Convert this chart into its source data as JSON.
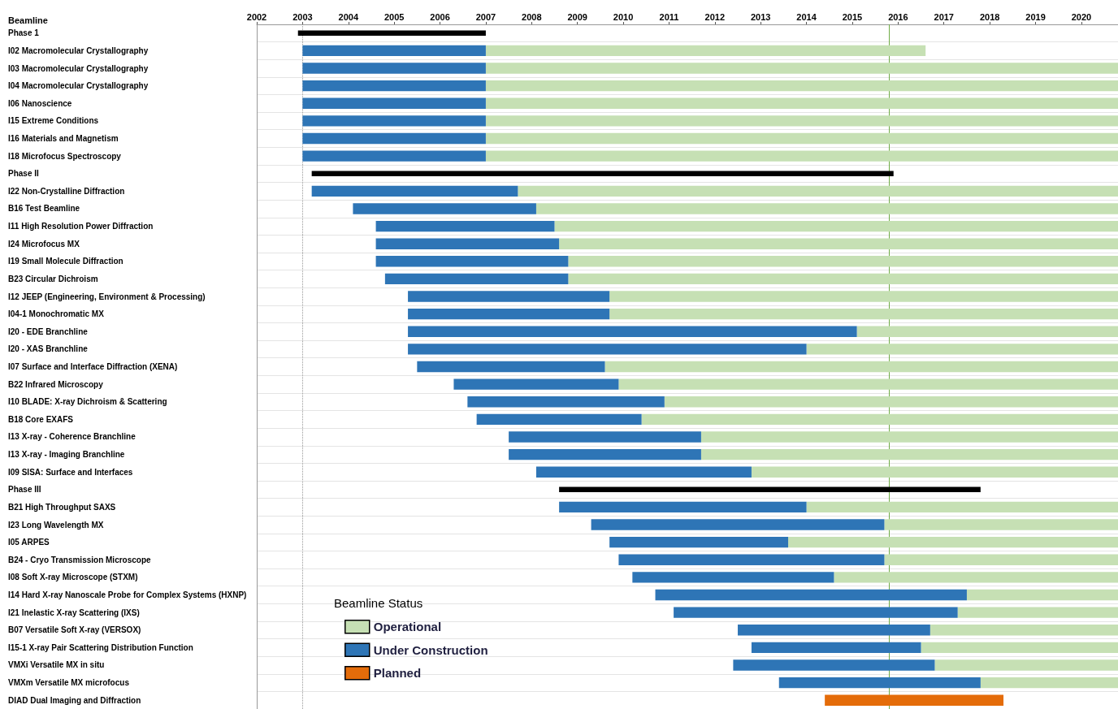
{
  "chart_data": {
    "type": "bar",
    "orientation": "horizontal",
    "ylabel": "Beamline",
    "legend_title": "Beamline Status",
    "legend": "bottom left",
    "categories": [
      "Phase 1",
      "I02 Macromolecular Crystallography",
      "I03 Macromolecular Crystallography",
      "I04 Macromolecular Crystallography",
      "I06 Nanoscience",
      "I15 Extreme Conditions",
      "I16 Materials and Magnetism",
      "I18 Microfocus Spectroscopy",
      "Phase II",
      "I22 Non-Crystalline Diffraction",
      "B16 Test Beamline",
      "I11 High Resolution Power Diffraction",
      "I24 Microfocus MX",
      "I19 Small Molecule Diffraction",
      "B23 Circular Dichroism",
      "I12 JEEP (Engineering, Environment & Processing)",
      "I04-1 Monochromatic MX",
      "I20 - EDE Branchline",
      "I20 - XAS Branchline",
      "I07 Surface and Interface Diffraction (XENA)",
      "B22 Infrared Microscopy",
      "I10 BLADE: X-ray Dichroism & Scattering",
      "B18 Core EXAFS",
      "I13 X-ray - Coherence Branchline",
      "I13 X-ray - Imaging Branchline",
      "I09 SISA: Surface and Interfaces",
      "Phase III",
      "B21 High Throughput SAXS",
      "I23 Long Wavelength MX",
      "I05 ARPES",
      "B24 - Cryo Transmission Microscope",
      "I08 Soft X-ray Microscope (STXM)",
      "I14 Hard X-ray Nanoscale Probe for Complex Systems (HXNP)",
      "I21 Inelastic X-ray Scattering (IXS)",
      "B07 Versatile Soft X-ray (VERSOX)",
      "I15-1 X-ray Pair Scattering Distribution Function",
      "VMXi Versatile MX in situ",
      "VMXm Versatile MX microfocus",
      "DIAD Dual Imaging and Diffraction"
    ],
    "series": [
      {
        "name": "Operational",
        "color": "#c6e0b4",
        "base": [
          null,
          2007.0,
          2007.0,
          2007.0,
          2007.0,
          2007.0,
          2007.0,
          2007.0,
          null,
          2007.7,
          2008.1,
          2008.5,
          2008.6,
          2008.8,
          2008.8,
          2009.7,
          2009.7,
          2015.1,
          2014.0,
          2009.6,
          2009.9,
          2010.9,
          2010.4,
          2011.7,
          2011.7,
          2012.8,
          null,
          2014.0,
          2015.7,
          2013.6,
          2015.7,
          2014.6,
          2017.5,
          2017.3,
          2016.7,
          2016.5,
          2016.8,
          2017.8,
          null
        ],
        "values": [
          null,
          9.6,
          13.8,
          13.8,
          13.8,
          13.8,
          13.8,
          13.8,
          null,
          13.1,
          12.7,
          12.3,
          12.2,
          12.0,
          12.0,
          11.1,
          11.1,
          5.7,
          6.8,
          11.2,
          10.9,
          9.9,
          10.4,
          9.1,
          9.1,
          8.0,
          null,
          6.8,
          5.1,
          7.2,
          5.1,
          6.2,
          3.3,
          3.5,
          4.1,
          4.3,
          4.0,
          3.0,
          null
        ]
      },
      {
        "name": "Under Construction",
        "color": "#2e75b6",
        "base": [
          null,
          2003.0,
          2003.0,
          2003.0,
          2003.0,
          2003.0,
          2003.0,
          2003.0,
          null,
          2003.2,
          2004.1,
          2004.6,
          2004.6,
          2004.6,
          2004.8,
          2005.3,
          2005.3,
          2005.3,
          2005.3,
          2005.5,
          2006.3,
          2006.6,
          2006.8,
          2007.5,
          2007.5,
          2008.1,
          null,
          2008.6,
          2009.3,
          2009.7,
          2009.9,
          2010.2,
          2010.7,
          2011.1,
          2012.5,
          2012.8,
          2012.4,
          2013.4,
          null
        ],
        "values": [
          null,
          4.0,
          4.0,
          4.0,
          4.0,
          4.0,
          4.0,
          4.0,
          null,
          4.5,
          4.0,
          3.9,
          4.0,
          4.2,
          4.0,
          4.4,
          4.4,
          9.8,
          8.7,
          4.1,
          3.6,
          4.3,
          3.6,
          4.2,
          4.2,
          4.7,
          null,
          5.4,
          6.4,
          3.9,
          5.8,
          4.4,
          6.8,
          6.2,
          4.2,
          3.7,
          4.4,
          4.4,
          null
        ]
      },
      {
        "name": "Planned",
        "color": "#e46c0a",
        "base": [
          null,
          null,
          null,
          null,
          null,
          null,
          null,
          null,
          null,
          null,
          null,
          null,
          null,
          null,
          null,
          null,
          null,
          null,
          null,
          null,
          null,
          null,
          null,
          null,
          null,
          null,
          null,
          null,
          null,
          null,
          null,
          null,
          null,
          null,
          null,
          null,
          null,
          null,
          2014.4
        ],
        "values": [
          null,
          null,
          null,
          null,
          null,
          null,
          null,
          null,
          null,
          null,
          null,
          null,
          null,
          null,
          null,
          null,
          null,
          null,
          null,
          null,
          null,
          null,
          null,
          null,
          null,
          null,
          null,
          null,
          null,
          null,
          null,
          null,
          null,
          null,
          null,
          null,
          null,
          null,
          3.9
        ]
      },
      {
        "color": "#000000",
        "base": [
          2002.9,
          null,
          null,
          null,
          null,
          null,
          null,
          null,
          2003.2,
          null,
          null,
          null,
          null,
          null,
          null,
          null,
          null,
          null,
          null,
          null,
          null,
          null,
          null,
          null,
          null,
          null,
          2008.6,
          null,
          null,
          null,
          null,
          null,
          null,
          null,
          null,
          null,
          null,
          null,
          null
        ],
        "values": [
          4.1,
          null,
          null,
          null,
          null,
          null,
          null,
          null,
          12.7,
          null,
          null,
          null,
          null,
          null,
          null,
          null,
          null,
          null,
          null,
          null,
          null,
          null,
          null,
          null,
          null,
          null,
          9.2,
          null,
          null,
          null,
          null,
          null,
          null,
          null,
          null,
          null,
          null,
          null,
          null
        ]
      }
    ],
    "xlim": [
      2002,
      2020.8
    ],
    "xticks": [
      2002,
      2003,
      2004,
      2005,
      2006,
      2007,
      2008,
      2009,
      2010,
      2011,
      2012,
      2013,
      2014,
      2015,
      2016,
      2017,
      2018,
      2019,
      2020
    ],
    "ref_lines": [
      {
        "axis": "x",
        "value": 2015.8,
        "color": "#70ad47",
        "line_style": "solid"
      },
      {
        "axis": "x",
        "value": 2003.0,
        "color": "#999999",
        "line_style": "dotted"
      }
    ]
  }
}
